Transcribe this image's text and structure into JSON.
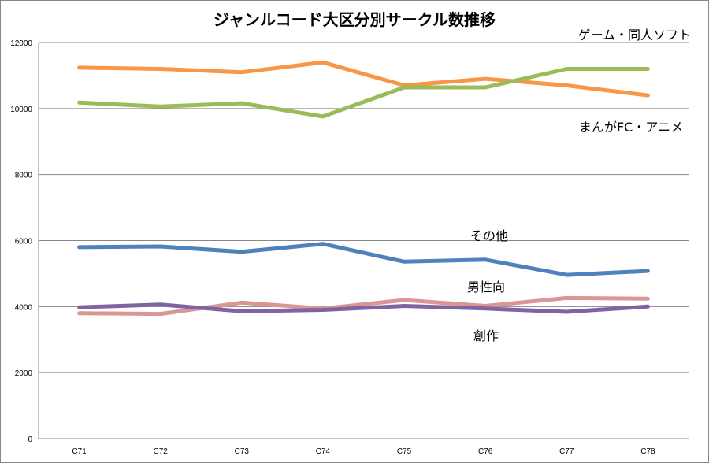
{
  "chart_data": {
    "type": "line",
    "title": "ジャンルコード大区分別サークル数推移",
    "xlabel": "",
    "ylabel": "",
    "categories": [
      "C71",
      "C72",
      "C73",
      "C74",
      "C75",
      "C76",
      "C77",
      "C78"
    ],
    "ylim": [
      0,
      12000
    ],
    "yticks": [
      "0",
      "2000",
      "4000",
      "6000",
      "8000",
      "10000",
      "12000"
    ],
    "grid": true,
    "legend": "inline labels",
    "series": [
      {
        "name": "ゲーム・同人ソフト",
        "color": "#F79646",
        "values": [
          11240,
          11200,
          11100,
          11400,
          10700,
          10900,
          10700,
          10400
        ]
      },
      {
        "name": "まんがFC・アニメ",
        "color": "#9BBB59",
        "values": [
          10180,
          10060,
          10160,
          9760,
          10640,
          10640,
          11200,
          11200
        ]
      },
      {
        "name": "その他",
        "color": "#4F81BD",
        "values": [
          5800,
          5820,
          5660,
          5900,
          5360,
          5420,
          4960,
          5080
        ]
      },
      {
        "name": "男性向",
        "color": "#D99694",
        "values": [
          3800,
          3780,
          4120,
          3940,
          4200,
          4020,
          4260,
          4240
        ]
      },
      {
        "name": "創作",
        "color": "#8064A2",
        "values": [
          3980,
          4060,
          3860,
          3900,
          4020,
          3940,
          3840,
          4000
        ]
      }
    ]
  }
}
